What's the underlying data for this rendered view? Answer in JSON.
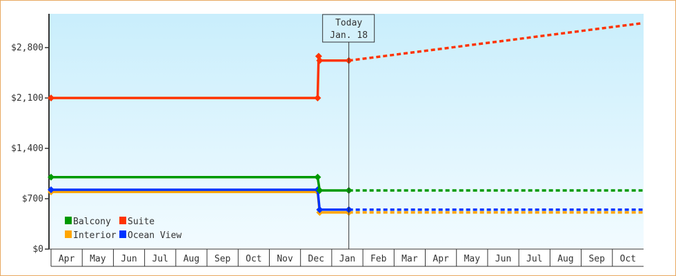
{
  "chart_data": {
    "type": "line",
    "title": "",
    "xlabel": "",
    "ylabel": "",
    "ylim": [
      0,
      3300
    ],
    "yticks": [
      0,
      700,
      1400,
      2100,
      2800
    ],
    "ytick_labels": [
      "$0",
      "$700",
      "$1,400",
      "$2,100",
      "$2,800"
    ],
    "x_categories": [
      "Apr",
      "May",
      "Jun",
      "Jul",
      "Aug",
      "Sep",
      "Oct",
      "Nov",
      "Dec",
      "Jan",
      "Feb",
      "Mar",
      "Apr",
      "May",
      "Jun",
      "Jul",
      "Aug",
      "Sep",
      "Oct"
    ],
    "today": {
      "label": "Today",
      "date_label": "Jan. 18",
      "date": "Jan 18"
    },
    "legend": {
      "placement": "bottom-left"
    },
    "grid": false,
    "series": [
      {
        "name": "Balcony",
        "color": "#009900",
        "points": [
          [
            "Apr 1",
            1000
          ],
          [
            "Dec 18",
            1000
          ],
          [
            "Dec 20",
            815
          ],
          [
            "Jan 18",
            815
          ]
        ],
        "forecast": [
          [
            "Jan 18",
            815
          ],
          [
            "Oct 31",
            815
          ]
        ]
      },
      {
        "name": "Suite",
        "color": "#ff3300",
        "points": [
          [
            "Apr 1",
            2100
          ],
          [
            "Dec 18",
            2100
          ],
          [
            "Dec 19",
            2680
          ],
          [
            "Dec 20",
            2620
          ],
          [
            "Jan 18",
            2620
          ]
        ],
        "forecast": [
          [
            "Jan 18",
            2620
          ],
          [
            "Oct 31",
            3140
          ]
        ]
      },
      {
        "name": "Interior",
        "color": "#ffa500",
        "points": [
          [
            "Apr 1",
            795
          ],
          [
            "Dec 18",
            795
          ],
          [
            "Dec 20",
            510
          ],
          [
            "Jan 18",
            510
          ]
        ],
        "forecast": [
          [
            "Jan 18",
            510
          ],
          [
            "Oct 31",
            510
          ]
        ]
      },
      {
        "name": "Ocean View",
        "color": "#0033ff",
        "points": [
          [
            "Apr 1",
            825
          ],
          [
            "Dec 18",
            825
          ],
          [
            "Dec 20",
            548
          ],
          [
            "Jan 18",
            548
          ]
        ],
        "forecast": [
          [
            "Jan 18",
            548
          ],
          [
            "Oct 31",
            548
          ]
        ]
      }
    ]
  }
}
